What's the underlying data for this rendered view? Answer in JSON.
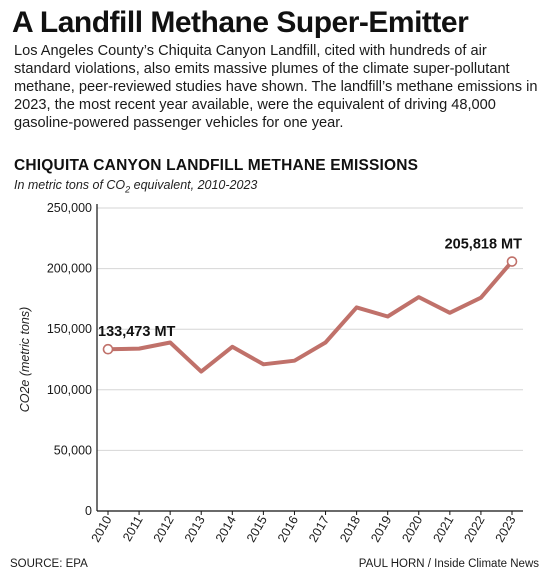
{
  "headline": "A Landfill Methane Super-Emitter",
  "intro": "Los Angeles County’s Chiquita Canyon Landfill, cited with hundreds of air standard violations, also emits massive plumes of the climate super-pollutant methane, peer-reviewed studies have shown. The landfill’s methane emissions in 2023, the most recent year available, were the equivalent of driving 48,000 gasoline-powered passenger vehicles for one year.",
  "chart_data": {
    "type": "line",
    "title": "CHIQUITA CANYON LANDFILL METHANE EMISSIONS",
    "subtitle_pre": "In metric tons of CO",
    "subtitle_sub": "2",
    "subtitle_post": " equivalent, 2010-2023",
    "ylabel": "CO2e (metric tons)",
    "x": [
      "2010",
      "2011",
      "2012",
      "2013",
      "2014",
      "2015",
      "2016",
      "2017",
      "2018",
      "2019",
      "2020",
      "2021",
      "2022",
      "2023"
    ],
    "series": [
      {
        "values": [
          133473,
          134000,
          139000,
          115000,
          135500,
          121000,
          124000,
          139000,
          168000,
          160500,
          176500,
          163500,
          176000,
          205818
        ]
      }
    ],
    "ylim": [
      0,
      250000
    ],
    "yticks": [
      0,
      50000,
      100000,
      150000,
      200000,
      250000
    ],
    "ytick_labels": [
      "0",
      "50,000",
      "100,000",
      "150,000",
      "200,000",
      "250,000"
    ],
    "grid": true,
    "annotations": [
      {
        "text": "133,473 MT",
        "point_index": 0
      },
      {
        "text": "205,818 MT",
        "point_index": 13
      }
    ],
    "line_color": "#c0716a",
    "grid_color": "#d6d6d6"
  },
  "footer": {
    "source": "SOURCE: EPA",
    "credit": "PAUL HORN / Inside Climate News"
  }
}
